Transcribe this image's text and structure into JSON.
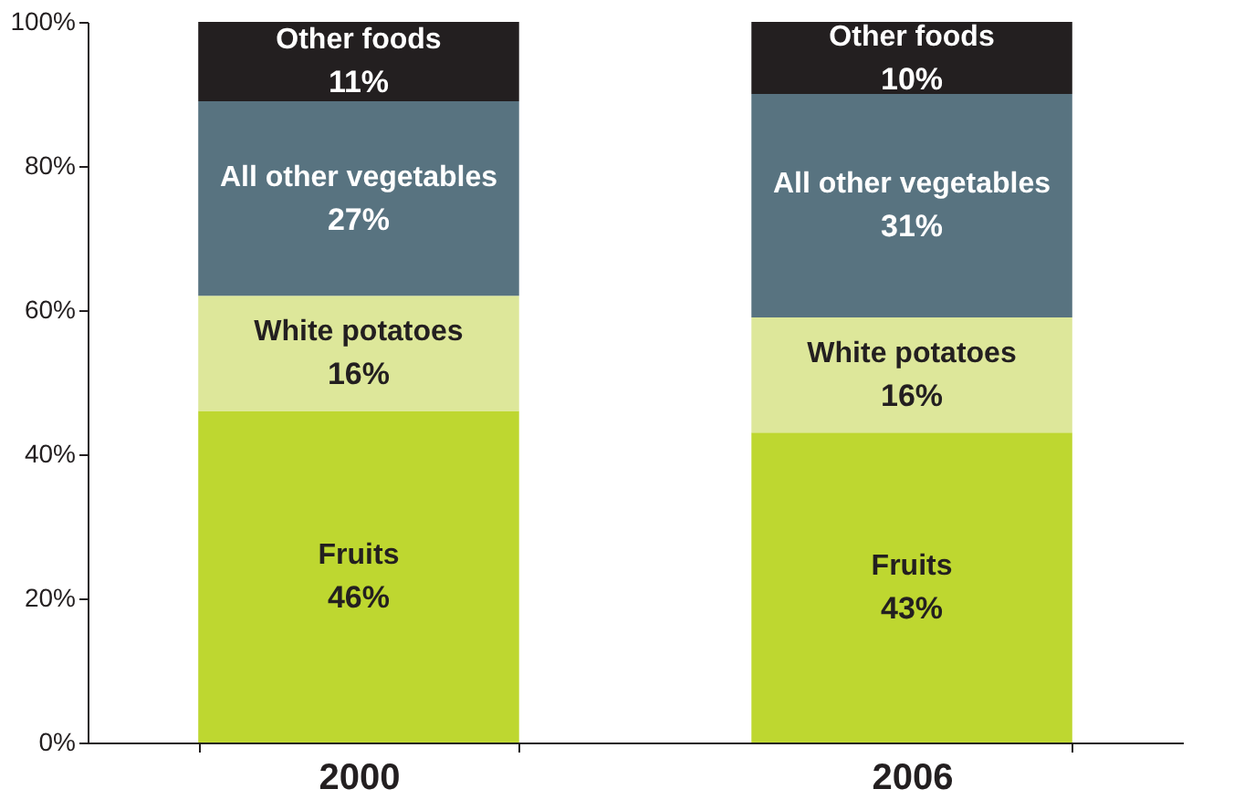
{
  "chart_data": {
    "type": "bar",
    "stacked": true,
    "categories": [
      "2000",
      "2006"
    ],
    "series": [
      {
        "name": "Fruits",
        "color": "#bed730",
        "values": [
          46,
          43
        ],
        "value_labels": [
          "46%",
          "43%"
        ]
      },
      {
        "name": "White potatoes",
        "color": "#dde79a",
        "values": [
          16,
          16
        ],
        "value_labels": [
          "16%",
          "16%"
        ]
      },
      {
        "name": "All other vegetables",
        "color": "#587380",
        "values": [
          27,
          31
        ],
        "value_labels": [
          "27%",
          "31%"
        ]
      },
      {
        "name": "Other foods",
        "color": "#231f20",
        "values": [
          11,
          10
        ],
        "value_labels": [
          "11%",
          "10%"
        ]
      }
    ],
    "ylim": [
      0,
      100
    ],
    "yticks": [
      {
        "value": 0,
        "label": "0%"
      },
      {
        "value": 20,
        "label": "20%"
      },
      {
        "value": 40,
        "label": "40%"
      },
      {
        "value": 60,
        "label": "60%"
      },
      {
        "value": 80,
        "label": "80%"
      },
      {
        "value": 100,
        "label": "100%"
      }
    ],
    "grid": false
  }
}
